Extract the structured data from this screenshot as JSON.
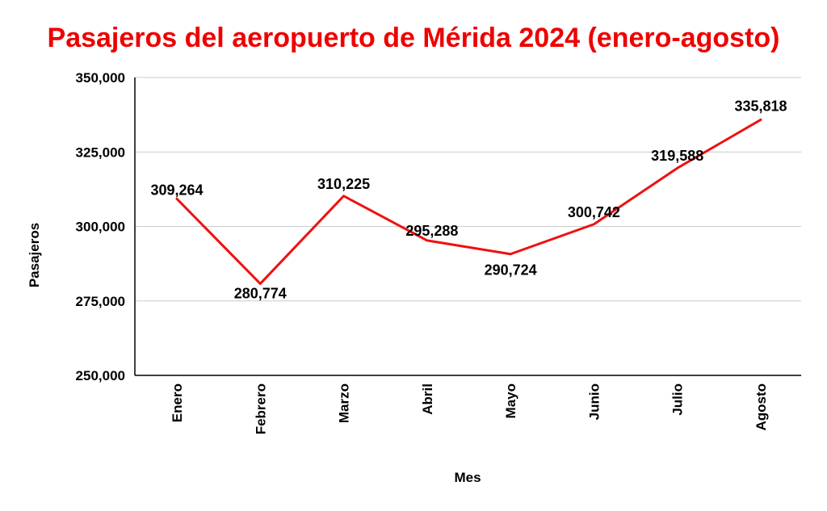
{
  "chart_data": {
    "type": "line",
    "title": "Pasajeros del aeropuerto de Mérida 2024 (enero-agosto)",
    "xlabel": "Mes",
    "ylabel": "Pasajeros",
    "categories": [
      "Enero",
      "Febrero",
      "Marzo",
      "Abril",
      "Mayo",
      "Junio",
      "Julio",
      "Agosto"
    ],
    "series": [
      {
        "values": [
          309264,
          280774,
          310225,
          295288,
          290724,
          300742,
          319588,
          335818
        ],
        "color": "#ee1111"
      }
    ],
    "data_labels": [
      "309,264",
      "280,774",
      "310,225",
      "295,288",
      "290,724",
      "300,742",
      "319,588",
      "335,818"
    ],
    "ylim": [
      250000,
      350000
    ],
    "yticks": [
      250000,
      275000,
      300000,
      325000,
      350000
    ],
    "ytick_labels": [
      "250,000",
      "275,000",
      "300,000",
      "325,000",
      "350,000"
    ],
    "grid": true,
    "legend": "none",
    "title_color": "#ee0000"
  }
}
